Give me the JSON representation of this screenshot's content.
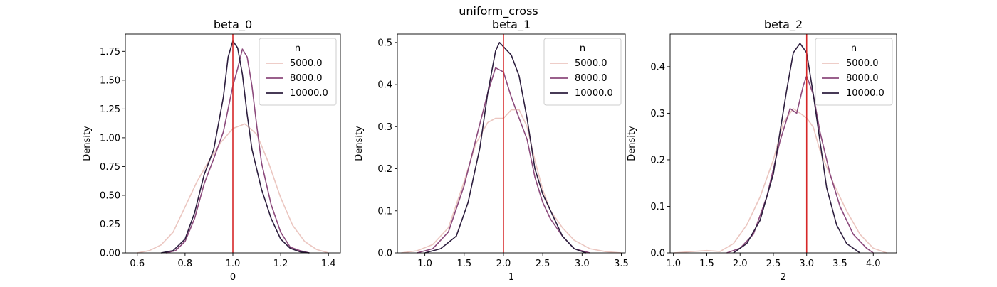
{
  "figure": {
    "suptitle": "uniform_cross"
  },
  "chart_data": [
    {
      "type": "line",
      "title": "beta_0",
      "xlabel": "0",
      "ylabel": "Density",
      "xlim": [
        0.55,
        1.45
      ],
      "ylim": [
        0,
        1.9
      ],
      "xticks": [
        0.6,
        0.8,
        1.0,
        1.2,
        1.4
      ],
      "xtick_labels": [
        "0.6",
        "0.8",
        "1.0",
        "1.2",
        "1.4"
      ],
      "yticks": [
        0,
        0.25,
        0.5,
        0.75,
        1.0,
        1.25,
        1.5,
        1.75
      ],
      "ytick_labels": [
        "0.00",
        "0.25",
        "0.50",
        "0.75",
        "1.00",
        "1.25",
        "1.50",
        "1.75"
      ],
      "true_value": 1.0,
      "legend": {
        "title": "n",
        "position": "upper right"
      },
      "series": [
        {
          "name": "5000.0",
          "color": "#ebc6c0",
          "x": [
            0.6,
            0.65,
            0.7,
            0.75,
            0.8,
            0.85,
            0.9,
            0.95,
            1.0,
            1.05,
            1.1,
            1.15,
            1.2,
            1.25,
            1.3,
            1.35,
            1.4
          ],
          "y": [
            0.0,
            0.02,
            0.07,
            0.18,
            0.4,
            0.62,
            0.8,
            0.96,
            1.08,
            1.12,
            1.03,
            0.78,
            0.48,
            0.24,
            0.1,
            0.03,
            0.0
          ]
        },
        {
          "name": "8000.0",
          "color": "#8c4a7c",
          "x": [
            0.72,
            0.76,
            0.8,
            0.84,
            0.88,
            0.92,
            0.96,
            1.0,
            1.02,
            1.04,
            1.06,
            1.08,
            1.1,
            1.12,
            1.16,
            1.2,
            1.24,
            1.28,
            1.32
          ],
          "y": [
            0.0,
            0.02,
            0.1,
            0.3,
            0.6,
            0.82,
            1.05,
            1.45,
            1.6,
            1.77,
            1.7,
            1.45,
            1.1,
            0.78,
            0.42,
            0.18,
            0.05,
            0.02,
            0.0
          ]
        },
        {
          "name": "10000.0",
          "color": "#2d1e3e",
          "x": [
            0.7,
            0.75,
            0.8,
            0.84,
            0.88,
            0.92,
            0.96,
            0.98,
            1.0,
            1.02,
            1.04,
            1.06,
            1.08,
            1.12,
            1.16,
            1.2,
            1.24,
            1.28,
            1.32
          ],
          "y": [
            0.0,
            0.02,
            0.12,
            0.35,
            0.68,
            0.9,
            1.35,
            1.7,
            1.84,
            1.78,
            1.55,
            1.2,
            0.9,
            0.55,
            0.3,
            0.12,
            0.04,
            0.01,
            0.0
          ]
        }
      ]
    },
    {
      "type": "line",
      "title": "beta_1",
      "xlabel": "1",
      "ylabel": "Density",
      "xlim": [
        0.65,
        3.55
      ],
      "ylim": [
        0,
        0.52
      ],
      "xticks": [
        1.0,
        1.5,
        2.0,
        2.5,
        3.0,
        3.5
      ],
      "xtick_labels": [
        "1.0",
        "1.5",
        "2.0",
        "2.5",
        "3.0",
        "3.5"
      ],
      "yticks": [
        0,
        0.1,
        0.2,
        0.3,
        0.4,
        0.5
      ],
      "ytick_labels": [
        "0.0",
        "0.1",
        "0.2",
        "0.3",
        "0.4",
        "0.5"
      ],
      "true_value": 2.0,
      "legend": {
        "title": "n",
        "position": "upper right"
      },
      "series": [
        {
          "name": "5000.0",
          "color": "#ebc6c0",
          "x": [
            0.7,
            0.9,
            1.1,
            1.3,
            1.5,
            1.65,
            1.8,
            1.9,
            2.0,
            2.1,
            2.2,
            2.3,
            2.4,
            2.5,
            2.6,
            2.75,
            2.9,
            3.1,
            3.3,
            3.5
          ],
          "y": [
            0.0,
            0.005,
            0.02,
            0.06,
            0.17,
            0.26,
            0.31,
            0.32,
            0.32,
            0.34,
            0.34,
            0.3,
            0.22,
            0.15,
            0.1,
            0.06,
            0.03,
            0.01,
            0.003,
            0.0
          ]
        },
        {
          "name": "8000.0",
          "color": "#8c4a7c",
          "x": [
            0.9,
            1.1,
            1.3,
            1.5,
            1.65,
            1.8,
            1.9,
            2.0,
            2.1,
            2.2,
            2.3,
            2.4,
            2.5,
            2.6,
            2.75,
            2.9,
            3.1
          ],
          "y": [
            0.0,
            0.01,
            0.05,
            0.16,
            0.27,
            0.38,
            0.44,
            0.43,
            0.37,
            0.32,
            0.27,
            0.18,
            0.12,
            0.08,
            0.04,
            0.01,
            0.0
          ]
        },
        {
          "name": "10000.0",
          "color": "#2d1e3e",
          "x": [
            1.0,
            1.2,
            1.4,
            1.55,
            1.7,
            1.8,
            1.9,
            1.95,
            2.0,
            2.1,
            2.2,
            2.3,
            2.4,
            2.5,
            2.6,
            2.75,
            2.9,
            3.05
          ],
          "y": [
            0.0,
            0.01,
            0.04,
            0.12,
            0.25,
            0.38,
            0.48,
            0.5,
            0.49,
            0.47,
            0.42,
            0.32,
            0.2,
            0.14,
            0.1,
            0.04,
            0.01,
            0.0
          ]
        }
      ]
    },
    {
      "type": "line",
      "title": "beta_2",
      "xlabel": "2",
      "ylabel": "Density",
      "xlim": [
        0.95,
        4.35
      ],
      "ylim": [
        0,
        0.47
      ],
      "xticks": [
        1.0,
        1.5,
        2.0,
        2.5,
        3.0,
        3.5,
        4.0
      ],
      "xtick_labels": [
        "1.0",
        "1.5",
        "2.0",
        "2.5",
        "3.0",
        "3.5",
        "4.0"
      ],
      "yticks": [
        0,
        0.1,
        0.2,
        0.3,
        0.4
      ],
      "ytick_labels": [
        "0.0",
        "0.1",
        "0.2",
        "0.3",
        "0.4"
      ],
      "true_value": 3.0,
      "legend": {
        "title": "n",
        "position": "upper right"
      },
      "series": [
        {
          "name": "5000.0",
          "color": "#ebc6c0",
          "x": [
            1.0,
            1.3,
            1.5,
            1.7,
            1.9,
            2.1,
            2.3,
            2.5,
            2.65,
            2.8,
            2.9,
            3.0,
            3.1,
            3.2,
            3.4,
            3.6,
            3.8,
            4.0,
            4.2
          ],
          "y": [
            0.0,
            0.003,
            0.005,
            0.003,
            0.02,
            0.06,
            0.12,
            0.2,
            0.28,
            0.31,
            0.3,
            0.29,
            0.27,
            0.22,
            0.15,
            0.09,
            0.04,
            0.01,
            0.0
          ]
        },
        {
          "name": "8000.0",
          "color": "#8c4a7c",
          "x": [
            1.8,
            2.0,
            2.2,
            2.4,
            2.6,
            2.75,
            2.85,
            2.95,
            3.0,
            3.1,
            3.2,
            3.35,
            3.5,
            3.7,
            3.9,
            4.0
          ],
          "y": [
            0.0,
            0.01,
            0.04,
            0.12,
            0.24,
            0.31,
            0.3,
            0.36,
            0.38,
            0.34,
            0.26,
            0.17,
            0.1,
            0.04,
            0.01,
            0.0
          ]
        },
        {
          "name": "10000.0",
          "color": "#2d1e3e",
          "x": [
            1.9,
            2.1,
            2.3,
            2.5,
            2.6,
            2.7,
            2.8,
            2.9,
            3.0,
            3.1,
            3.2,
            3.3,
            3.45,
            3.6,
            3.8
          ],
          "y": [
            0.0,
            0.02,
            0.07,
            0.17,
            0.26,
            0.35,
            0.43,
            0.45,
            0.43,
            0.34,
            0.24,
            0.14,
            0.06,
            0.02,
            0.0
          ]
        }
      ]
    }
  ]
}
